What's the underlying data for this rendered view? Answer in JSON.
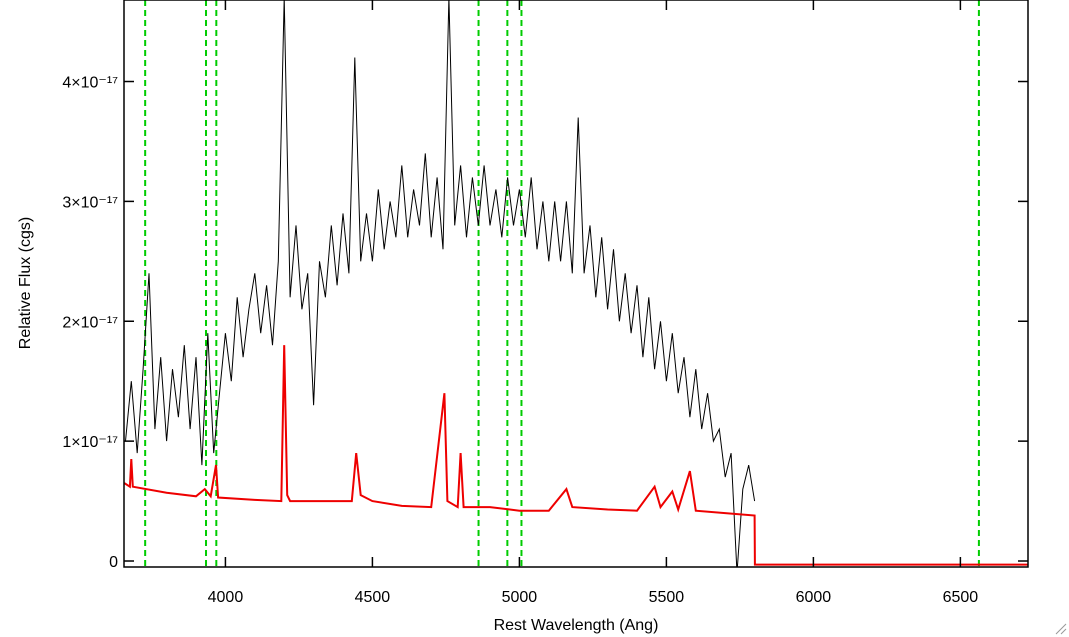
{
  "chart_data": {
    "type": "line",
    "xlabel": "Rest Wavelength (Ang)",
    "ylabel": "Relative Flux (cgs)",
    "xlim": [
      3655,
      6730
    ],
    "ylim": [
      -5e-19,
      4.68e-17
    ],
    "xticks": [
      4000,
      4500,
      5000,
      5500,
      6000,
      6500
    ],
    "yticks": [
      0,
      {
        "value": 1e-17,
        "label": "1×10⁻¹⁷"
      },
      {
        "value": 2e-17,
        "label": "2×10⁻¹⁷"
      },
      {
        "value": 3e-17,
        "label": "3×10⁻¹⁷"
      },
      {
        "value": 4e-17,
        "label": "4×10⁻¹⁷"
      }
    ],
    "vlines": {
      "color": "#00cc00",
      "x": [
        3727,
        3934,
        3969,
        4861,
        4959,
        5007,
        6563
      ]
    },
    "series": [
      {
        "color": "#000000",
        "x": [
          3660,
          3680,
          3700,
          3720,
          3740,
          3760,
          3780,
          3800,
          3820,
          3840,
          3860,
          3880,
          3900,
          3920,
          3940,
          3960,
          3980,
          4000,
          4020,
          4040,
          4060,
          4080,
          4100,
          4120,
          4140,
          4160,
          4180,
          4200,
          4220,
          4240,
          4260,
          4280,
          4300,
          4320,
          4340,
          4360,
          4380,
          4400,
          4420,
          4440,
          4460,
          4480,
          4500,
          4520,
          4540,
          4560,
          4580,
          4600,
          4620,
          4640,
          4660,
          4680,
          4700,
          4720,
          4740,
          4760,
          4780,
          4800,
          4820,
          4840,
          4860,
          4880,
          4900,
          4920,
          4940,
          4960,
          4980,
          5000,
          5020,
          5040,
          5060,
          5080,
          5100,
          5120,
          5140,
          5160,
          5180,
          5200,
          5220,
          5240,
          5260,
          5280,
          5300,
          5320,
          5340,
          5360,
          5380,
          5400,
          5420,
          5440,
          5460,
          5480,
          5500,
          5520,
          5540,
          5560,
          5580,
          5600,
          5620,
          5640,
          5660,
          5680,
          5700,
          5720,
          5740,
          5760,
          5780,
          5800
        ],
        "values": [
          1e-17,
          1.5e-17,
          9e-18,
          1.6e-17,
          2.4e-17,
          1.1e-17,
          1.7e-17,
          1e-17,
          1.6e-17,
          1.2e-17,
          1.8e-17,
          1.1e-17,
          1.7e-17,
          8e-18,
          1.9e-17,
          9e-18,
          1.4e-17,
          1.9e-17,
          1.5e-17,
          2.2e-17,
          1.7e-17,
          2.1e-17,
          2.4e-17,
          1.9e-17,
          2.3e-17,
          1.8e-17,
          2.5e-17,
          4.7e-17,
          2.2e-17,
          2.8e-17,
          2.1e-17,
          2.4e-17,
          1.3e-17,
          2.5e-17,
          2.2e-17,
          2.8e-17,
          2.3e-17,
          2.9e-17,
          2.4e-17,
          4.2e-17,
          2.5e-17,
          2.9e-17,
          2.5e-17,
          3.1e-17,
          2.6e-17,
          3e-17,
          2.7e-17,
          3.3e-17,
          2.7e-17,
          3.1e-17,
          2.8e-17,
          3.4e-17,
          2.7e-17,
          3.2e-17,
          2.6e-17,
          4.7e-17,
          2.8e-17,
          3.3e-17,
          2.7e-17,
          3.2e-17,
          2.8e-17,
          3.3e-17,
          2.8e-17,
          3.1e-17,
          2.7e-17,
          3.2e-17,
          2.8e-17,
          3.1e-17,
          2.7e-17,
          3.2e-17,
          2.6e-17,
          3e-17,
          2.5e-17,
          3e-17,
          2.5e-17,
          3e-17,
          2.4e-17,
          3.7e-17,
          2.4e-17,
          2.8e-17,
          2.2e-17,
          2.7e-17,
          2.1e-17,
          2.6e-17,
          2e-17,
          2.4e-17,
          1.9e-17,
          2.3e-17,
          1.7e-17,
          2.2e-17,
          1.6e-17,
          2e-17,
          1.5e-17,
          1.9e-17,
          1.4e-17,
          1.7e-17,
          1.2e-17,
          1.6e-17,
          1.1e-17,
          1.4e-17,
          1e-17,
          1.1e-17,
          7e-18,
          9e-18,
          -1e-18,
          6e-18,
          8e-18,
          5e-18
        ]
      },
      {
        "color": "#ee0000",
        "x": [
          3656,
          3675,
          3680,
          3685,
          3800,
          3900,
          3930,
          3950,
          3968,
          3975,
          4100,
          4190,
          4200,
          4210,
          4220,
          4300,
          4430,
          4445,
          4460,
          4500,
          4600,
          4700,
          4745,
          4755,
          4790,
          4800,
          4810,
          4900,
          5000,
          5100,
          5160,
          5180,
          5300,
          5400,
          5460,
          5480,
          5520,
          5540,
          5580,
          5600,
          5700,
          5800,
          5801,
          6730
        ],
        "values": [
          6.5e-18,
          6.2e-18,
          8.5e-18,
          6.2e-18,
          5.7e-18,
          5.4e-18,
          6e-18,
          5.4e-18,
          8e-18,
          5.3e-18,
          5.1e-18,
          5e-18,
          1.8e-17,
          5.5e-18,
          5e-18,
          5e-18,
          5e-18,
          9e-18,
          5.5e-18,
          5e-18,
          4.6e-18,
          4.5e-18,
          1.4e-17,
          5e-18,
          4.5e-18,
          9e-18,
          4.5e-18,
          4.5e-18,
          4.2e-18,
          4.2e-18,
          6e-18,
          4.5e-18,
          4.3e-18,
          4.2e-18,
          6.2e-18,
          4.5e-18,
          5.8e-18,
          4.3e-18,
          7.5e-18,
          4.2e-18,
          4e-18,
          3.8e-18,
          -3e-19,
          -3e-19
        ]
      }
    ]
  }
}
